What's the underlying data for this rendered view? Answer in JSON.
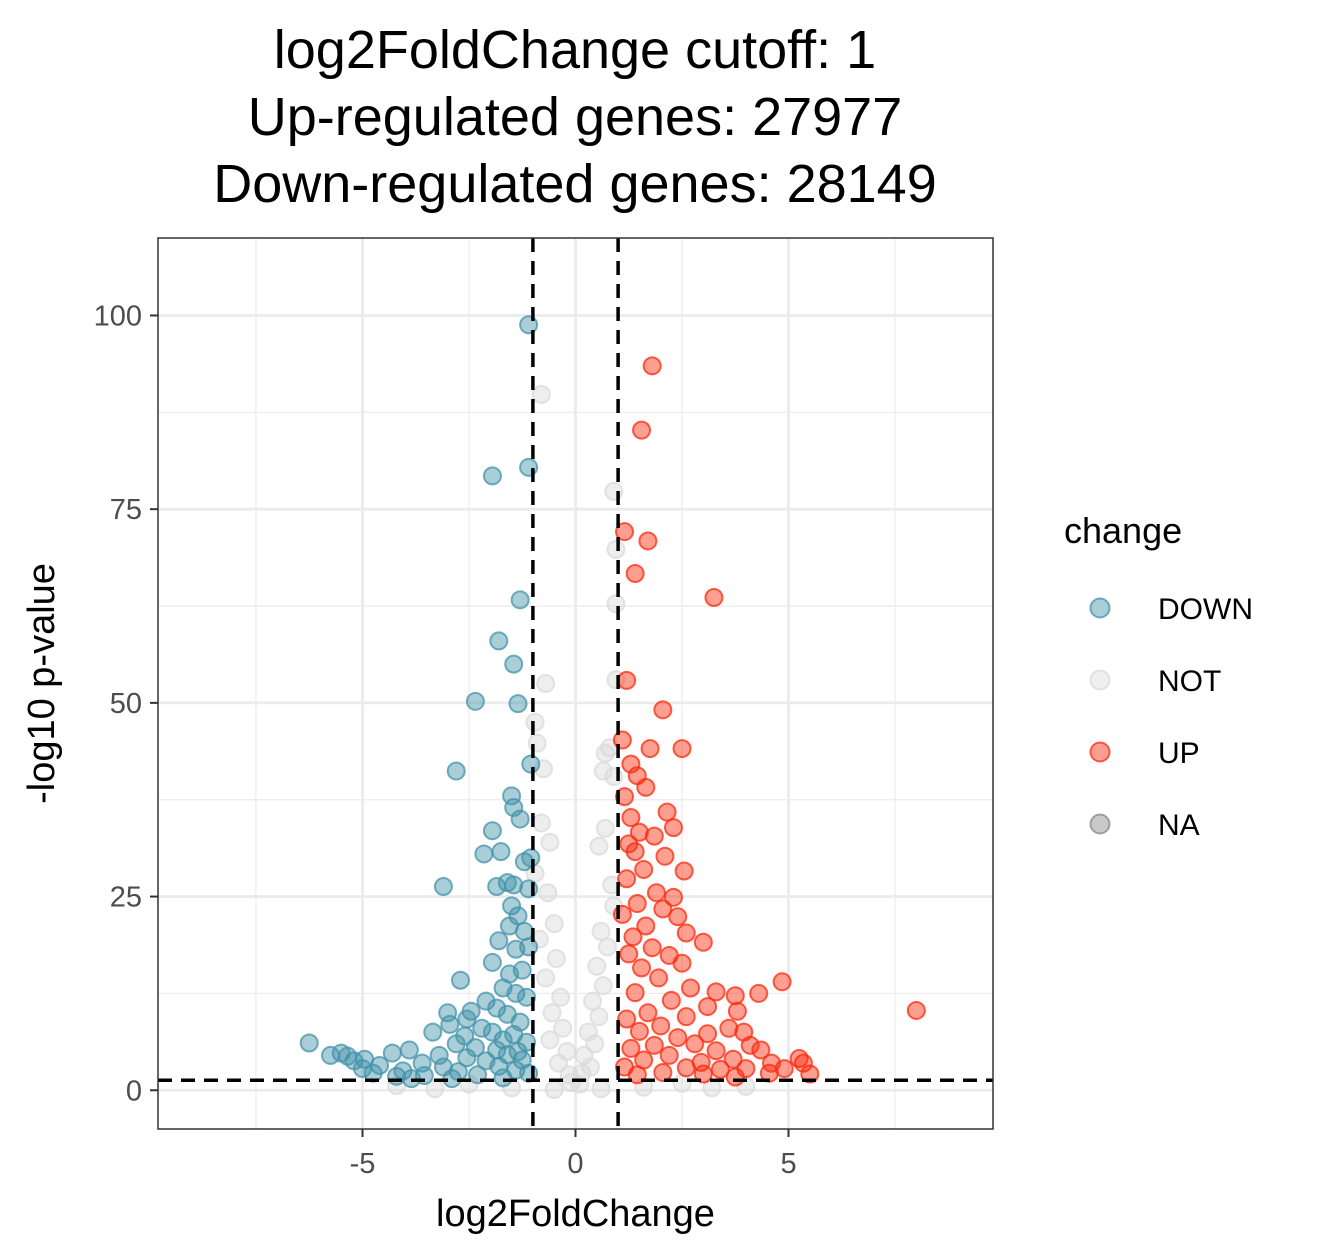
{
  "chart_data": {
    "type": "scatter",
    "title_lines": [
      "log2FoldChange cutoff: 1",
      "Up-regulated genes: 27977",
      "Down-regulated genes: 28149"
    ],
    "xlabel": "log2FoldChange",
    "ylabel": "-log10 p-value",
    "xlim": [
      -9.8,
      9.8
    ],
    "ylim": [
      -5,
      110
    ],
    "x_ticks": [
      -5,
      0,
      5
    ],
    "x_tick_labels": [
      "-5",
      "0",
      "5"
    ],
    "y_ticks": [
      0,
      25,
      50,
      75,
      100
    ],
    "y_tick_labels": [
      "0",
      "25",
      "50",
      "75",
      "100"
    ],
    "grid": true,
    "thresholds": {
      "fold_change": [
        -1,
        1
      ],
      "neg_log10_p": 1.3
    },
    "legend": {
      "title": "change",
      "placement": "right",
      "items": [
        {
          "label": "DOWN",
          "color": "#4393a9"
        },
        {
          "label": "NOT",
          "color": "#d9d9d9"
        },
        {
          "label": "UP",
          "color": "#fc2a0e"
        },
        {
          "label": "NA",
          "color": "#888888"
        }
      ]
    },
    "series": [
      {
        "name": "DOWN",
        "color": "#4393a9",
        "points": [
          [
            -1.1,
            98.8
          ],
          [
            -1.1,
            80.4
          ],
          [
            -1.95,
            79.3
          ],
          [
            -1.3,
            63.3
          ],
          [
            -1.8,
            58.0
          ],
          [
            -1.45,
            55.0
          ],
          [
            -2.35,
            50.2
          ],
          [
            -1.35,
            49.9
          ],
          [
            -2.8,
            41.2
          ],
          [
            -1.05,
            42.1
          ],
          [
            -1.5,
            38.0
          ],
          [
            -1.45,
            36.5
          ],
          [
            -1.3,
            35.0
          ],
          [
            -1.95,
            33.5
          ],
          [
            -2.15,
            30.5
          ],
          [
            -1.75,
            30.8
          ],
          [
            -1.2,
            29.5
          ],
          [
            -1.05,
            30.0
          ],
          [
            -3.1,
            26.3
          ],
          [
            -1.6,
            26.8
          ],
          [
            -1.45,
            26.5
          ],
          [
            -1.85,
            26.3
          ],
          [
            -1.1,
            26.0
          ],
          [
            -1.5,
            23.8
          ],
          [
            -1.35,
            22.5
          ],
          [
            -1.55,
            21.2
          ],
          [
            -1.2,
            20.5
          ],
          [
            -1.8,
            19.3
          ],
          [
            -1.4,
            18.2
          ],
          [
            -1.1,
            18.5
          ],
          [
            -1.95,
            16.5
          ],
          [
            -1.55,
            15.0
          ],
          [
            -1.25,
            15.5
          ],
          [
            -2.7,
            14.2
          ],
          [
            -1.7,
            13.2
          ],
          [
            -1.4,
            12.5
          ],
          [
            -2.1,
            11.5
          ],
          [
            -1.15,
            12.0
          ],
          [
            -1.85,
            10.6
          ],
          [
            -2.45,
            10.2
          ],
          [
            -3.0,
            10.0
          ],
          [
            -2.55,
            9.2
          ],
          [
            -1.6,
            9.8
          ],
          [
            -2.95,
            8.5
          ],
          [
            -1.3,
            8.8
          ],
          [
            -2.2,
            8.0
          ],
          [
            -1.95,
            7.5
          ],
          [
            -3.35,
            7.5
          ],
          [
            -2.6,
            7.0
          ],
          [
            -1.45,
            7.2
          ],
          [
            -1.7,
            6.5
          ],
          [
            -6.25,
            6.1
          ],
          [
            -2.8,
            6.0
          ],
          [
            -1.15,
            6.2
          ],
          [
            -3.9,
            5.2
          ],
          [
            -2.35,
            5.5
          ],
          [
            -1.85,
            5.2
          ],
          [
            -1.35,
            5.0
          ],
          [
            -5.5,
            4.8
          ],
          [
            -5.75,
            4.5
          ],
          [
            -5.35,
            4.4
          ],
          [
            -4.3,
            4.8
          ],
          [
            -3.2,
            4.5
          ],
          [
            -2.55,
            4.2
          ],
          [
            -1.6,
            4.6
          ],
          [
            -4.95,
            4.0
          ],
          [
            -5.2,
            3.8
          ],
          [
            -3.6,
            3.5
          ],
          [
            -2.1,
            3.8
          ],
          [
            -1.25,
            3.9
          ],
          [
            -4.6,
            3.2
          ],
          [
            -5.0,
            2.8
          ],
          [
            -3.1,
            3.0
          ],
          [
            -1.8,
            3.1
          ],
          [
            -4.05,
            2.5
          ],
          [
            -4.75,
            2.2
          ],
          [
            -2.75,
            2.4
          ],
          [
            -1.4,
            2.6
          ],
          [
            -3.55,
            1.9
          ],
          [
            -4.2,
            1.8
          ],
          [
            -2.3,
            2.0
          ],
          [
            -1.1,
            2.2
          ],
          [
            -2.9,
            1.5
          ],
          [
            -3.85,
            1.5
          ],
          [
            -1.7,
            1.6
          ]
        ]
      },
      {
        "name": "NOT",
        "color": "#d9d9d9",
        "points": [
          [
            -0.8,
            89.8
          ],
          [
            0.9,
            77.3
          ],
          [
            0.95,
            69.8
          ],
          [
            0.95,
            62.8
          ],
          [
            -0.7,
            52.5
          ],
          [
            0.95,
            53.0
          ],
          [
            -0.95,
            47.5
          ],
          [
            0.8,
            44.2
          ],
          [
            0.7,
            43.5
          ],
          [
            -0.9,
            44.8
          ],
          [
            0.65,
            41.2
          ],
          [
            -0.75,
            41.5
          ],
          [
            0.9,
            40.5
          ],
          [
            -0.8,
            34.5
          ],
          [
            0.7,
            33.8
          ],
          [
            -0.6,
            32.0
          ],
          [
            0.55,
            31.5
          ],
          [
            -0.95,
            28.0
          ],
          [
            0.85,
            26.5
          ],
          [
            -0.65,
            25.5
          ],
          [
            0.9,
            23.8
          ],
          [
            -0.5,
            21.5
          ],
          [
            0.6,
            20.5
          ],
          [
            -0.85,
            19.5
          ],
          [
            0.75,
            18.5
          ],
          [
            -0.45,
            17.0
          ],
          [
            0.5,
            16.0
          ],
          [
            -0.7,
            14.5
          ],
          [
            0.65,
            13.5
          ],
          [
            -0.35,
            12.0
          ],
          [
            0.4,
            11.5
          ],
          [
            -0.55,
            10.0
          ],
          [
            0.55,
            9.5
          ],
          [
            -0.3,
            8.0
          ],
          [
            0.3,
            7.5
          ],
          [
            -0.6,
            6.5
          ],
          [
            0.45,
            6.0
          ],
          [
            -0.2,
            5.0
          ],
          [
            0.2,
            4.5
          ],
          [
            -0.4,
            3.5
          ],
          [
            0.35,
            3.0
          ],
          [
            -0.15,
            2.0
          ],
          [
            0.15,
            2.2
          ],
          [
            -0.1,
            1.0
          ],
          [
            0.1,
            0.8
          ],
          [
            -2.5,
            0.8
          ],
          [
            2.5,
            0.9
          ],
          [
            -4.2,
            0.6
          ],
          [
            4.0,
            0.5
          ],
          [
            -1.5,
            0.3
          ],
          [
            1.6,
            0.4
          ],
          [
            -3.3,
            0.2
          ],
          [
            3.2,
            0.3
          ],
          [
            -0.5,
            0.1
          ],
          [
            0.6,
            0.2
          ]
        ]
      },
      {
        "name": "UP",
        "color": "#fc2a0e",
        "points": [
          [
            1.8,
            93.5
          ],
          [
            1.55,
            85.2
          ],
          [
            1.15,
            72.1
          ],
          [
            1.7,
            70.9
          ],
          [
            1.4,
            66.7
          ],
          [
            3.25,
            63.6
          ],
          [
            1.2,
            52.9
          ],
          [
            2.05,
            49.1
          ],
          [
            1.1,
            45.2
          ],
          [
            1.75,
            44.1
          ],
          [
            2.5,
            44.1
          ],
          [
            1.3,
            42.1
          ],
          [
            1.45,
            40.6
          ],
          [
            1.65,
            39.1
          ],
          [
            1.15,
            37.9
          ],
          [
            1.3,
            35.2
          ],
          [
            2.15,
            35.9
          ],
          [
            1.5,
            33.3
          ],
          [
            2.3,
            33.9
          ],
          [
            1.25,
            31.8
          ],
          [
            1.85,
            32.8
          ],
          [
            1.4,
            30.8
          ],
          [
            2.1,
            30.2
          ],
          [
            1.6,
            28.5
          ],
          [
            2.55,
            28.3
          ],
          [
            1.2,
            27.3
          ],
          [
            1.9,
            25.5
          ],
          [
            2.3,
            24.9
          ],
          [
            1.45,
            24.1
          ],
          [
            2.05,
            23.4
          ],
          [
            1.1,
            22.7
          ],
          [
            2.4,
            22.4
          ],
          [
            1.65,
            21.2
          ],
          [
            2.6,
            20.3
          ],
          [
            1.35,
            19.8
          ],
          [
            3.0,
            19.1
          ],
          [
            1.8,
            18.4
          ],
          [
            2.2,
            17.4
          ],
          [
            1.25,
            17.6
          ],
          [
            2.5,
            16.4
          ],
          [
            1.55,
            15.8
          ],
          [
            4.85,
            14.0
          ],
          [
            1.95,
            14.5
          ],
          [
            2.7,
            13.2
          ],
          [
            3.3,
            12.7
          ],
          [
            4.3,
            12.5
          ],
          [
            1.4,
            12.6
          ],
          [
            3.75,
            12.2
          ],
          [
            2.25,
            11.6
          ],
          [
            3.1,
            10.8
          ],
          [
            3.8,
            10.2
          ],
          [
            8.0,
            10.3
          ],
          [
            1.7,
            10.0
          ],
          [
            2.6,
            9.5
          ],
          [
            1.2,
            9.2
          ],
          [
            3.6,
            8.0
          ],
          [
            2.0,
            8.3
          ],
          [
            3.1,
            7.3
          ],
          [
            3.95,
            7.5
          ],
          [
            1.5,
            7.6
          ],
          [
            2.4,
            6.8
          ],
          [
            4.1,
            5.8
          ],
          [
            2.8,
            6.0
          ],
          [
            1.85,
            5.8
          ],
          [
            4.35,
            5.2
          ],
          [
            3.3,
            5.1
          ],
          [
            1.3,
            5.4
          ],
          [
            5.25,
            4.1
          ],
          [
            5.35,
            3.5
          ],
          [
            2.2,
            4.5
          ],
          [
            3.7,
            4.0
          ],
          [
            4.6,
            3.5
          ],
          [
            2.95,
            3.6
          ],
          [
            1.6,
            3.9
          ],
          [
            4.9,
            2.8
          ],
          [
            5.5,
            2.1
          ],
          [
            4.0,
            2.8
          ],
          [
            3.4,
            2.7
          ],
          [
            2.6,
            2.9
          ],
          [
            1.15,
            3.0
          ],
          [
            4.55,
            2.2
          ],
          [
            3.0,
            2.1
          ],
          [
            2.05,
            2.3
          ],
          [
            1.45,
            2.0
          ],
          [
            3.75,
            1.7
          ]
        ]
      }
    ]
  }
}
